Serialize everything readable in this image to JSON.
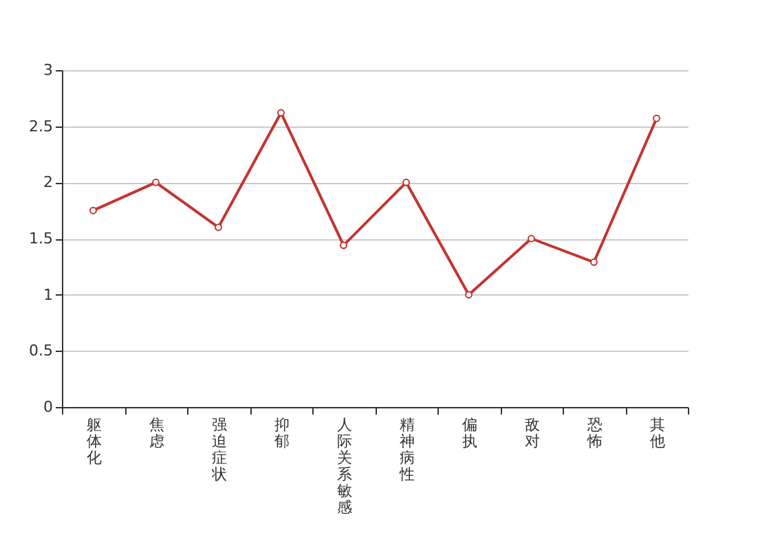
{
  "chart_data": {
    "type": "line",
    "categories": [
      "躯体化",
      "焦虑",
      "强迫症状",
      "抑郁",
      "人际关系敏感",
      "精神病性",
      "偏执",
      "敌对",
      "恐怖",
      "其他"
    ],
    "series": [
      {
        "color": "#c23531",
        "values": [
          1.75,
          2.0,
          1.6,
          2.62,
          1.44,
          2.0,
          1.0,
          1.5,
          1.29,
          2.57
        ]
      }
    ],
    "ylim": [
      0,
      3
    ],
    "yticks": [
      0,
      0.5,
      1,
      1.5,
      2,
      2.5,
      3
    ],
    "grid": "y",
    "marker": "circle",
    "line_style": "solid"
  }
}
